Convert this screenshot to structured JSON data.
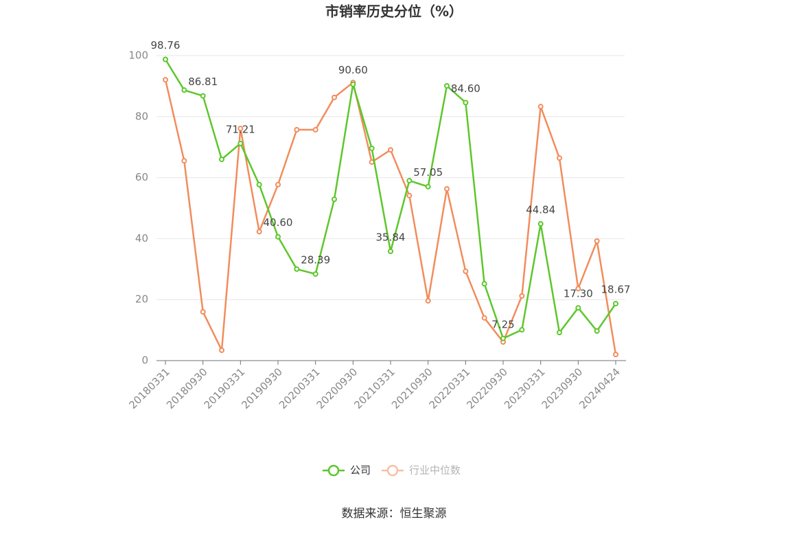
{
  "chart_data": {
    "type": "line",
    "title": "市销率历史分位（%）",
    "categories": [
      "20180331",
      null,
      "20180930",
      null,
      "20190331",
      null,
      "20190930",
      null,
      "20200331",
      null,
      "20200930",
      null,
      "20210331",
      null,
      "20210930",
      null,
      "20220331",
      null,
      "20220930",
      null,
      "20230331",
      null,
      "20230930",
      null,
      "20240424"
    ],
    "series": [
      {
        "name": "公司",
        "color": "#5cc72a",
        "values": [
          98.76,
          88.7,
          86.81,
          66.0,
          71.21,
          57.7,
          40.6,
          30.0,
          28.39,
          52.9,
          90.6,
          69.6,
          35.84,
          59.0,
          57.05,
          90.1,
          84.6,
          25.2,
          7.25,
          10.1,
          44.84,
          9.2,
          17.3,
          9.7,
          18.67
        ],
        "value_labels": [
          "98.76",
          null,
          "86.81",
          null,
          "71.21",
          null,
          "40.60",
          null,
          "28.39",
          null,
          "90.60",
          null,
          "35.84",
          null,
          "57.05",
          null,
          "84.60",
          null,
          "7.25",
          null,
          "44.84",
          null,
          "17.30",
          null,
          "18.67"
        ]
      },
      {
        "name": "行业中位数",
        "color": "#f28c5c",
        "values": [
          92.1,
          65.5,
          16.0,
          3.4,
          76.1,
          42.3,
          57.7,
          75.7,
          75.7,
          86.3,
          91.2,
          65.1,
          69.1,
          54.1,
          19.6,
          56.3,
          29.3,
          14.0,
          6.1,
          21.2,
          83.3,
          66.4,
          23.6,
          39.2,
          2.0
        ]
      }
    ],
    "ylim": [
      0,
      100
    ],
    "yticks": [
      0,
      20,
      40,
      60,
      80,
      100
    ],
    "grid": true,
    "legend": "bottom",
    "source": "数据来源：恒生聚源"
  }
}
